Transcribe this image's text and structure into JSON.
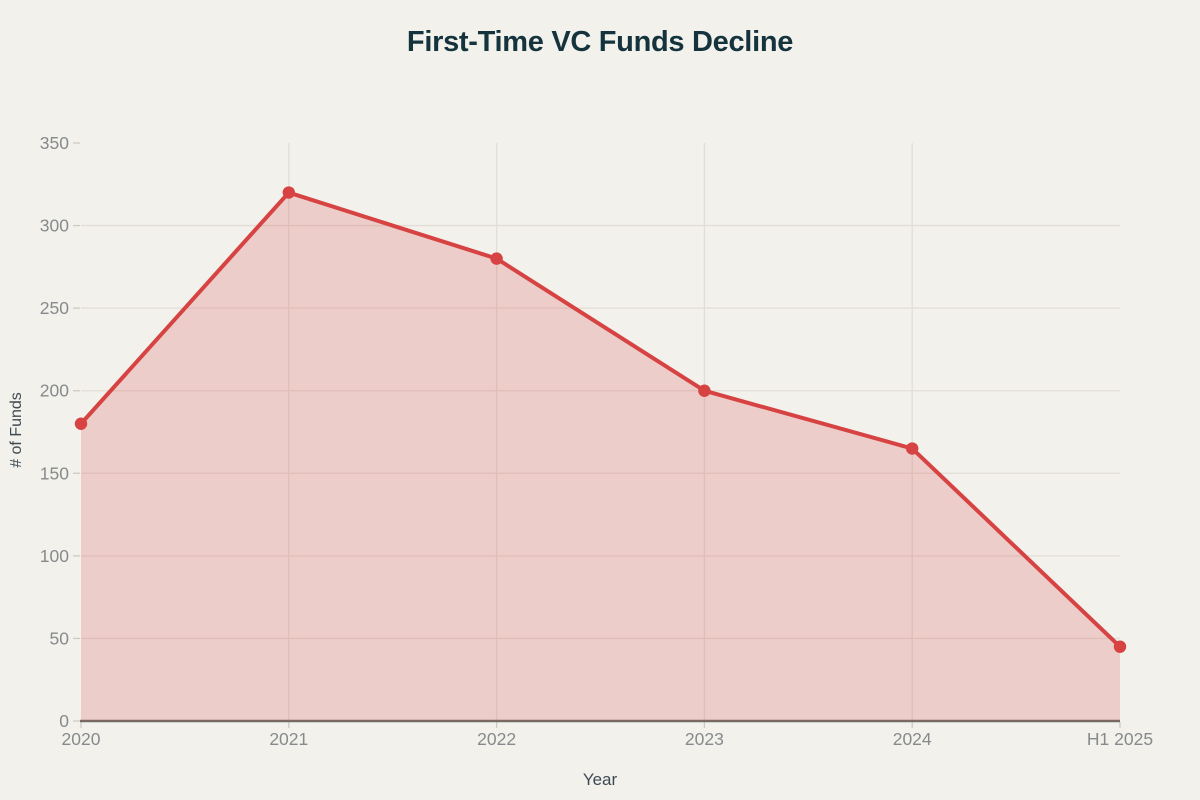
{
  "background": "#F2F1EB",
  "chart_data": {
    "type": "area",
    "title": "First-Time VC Funds Decline",
    "xlabel": "Year",
    "ylabel": "# of Funds",
    "categories": [
      "2020",
      "2021",
      "2022",
      "2023",
      "2024",
      "H1 2025"
    ],
    "series": [
      {
        "name": "# of Funds",
        "values": [
          180,
          320,
          280,
          200,
          165,
          45
        ]
      }
    ],
    "ylim": [
      0,
      350
    ],
    "ytick_step": 50,
    "grid": true,
    "legend": "none",
    "colors": {
      "line": "#D64342",
      "fill": "#D64342",
      "fill_opacity": 0.2,
      "title": "#14333C",
      "tick_label": "#878A8C",
      "axis_label": "#3E4B54",
      "gridline": "#E3DDD5",
      "tick_mark": "#CFCAC2",
      "axis_line": "#6F6E67",
      "background": "#F2F1EB"
    }
  }
}
